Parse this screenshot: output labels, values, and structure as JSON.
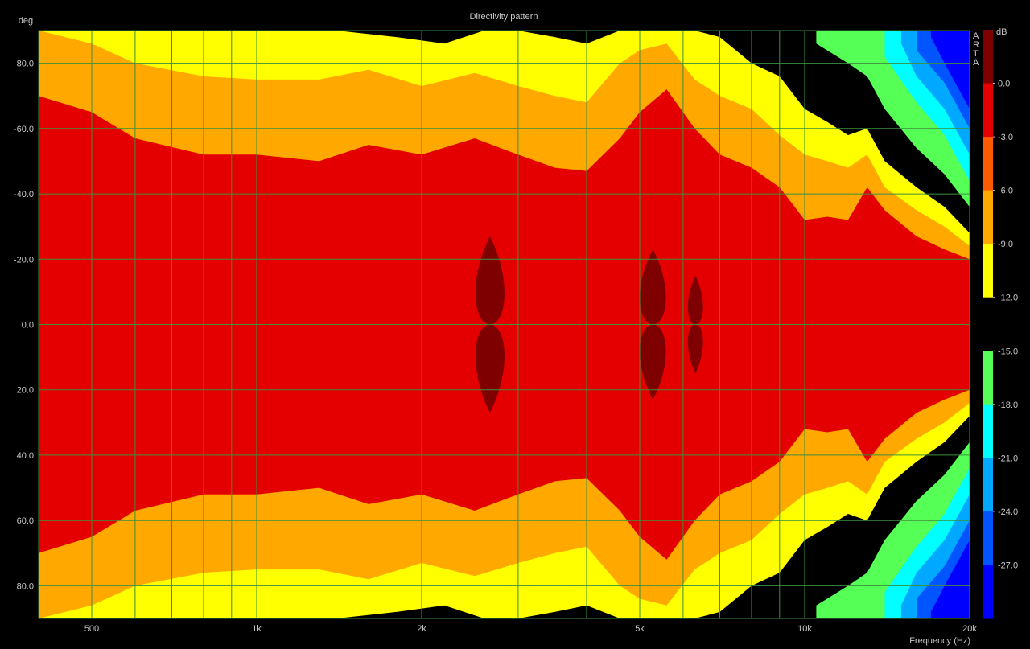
{
  "chart_data": {
    "type": "heatmap",
    "title": "Directivity pattern",
    "xlabel": "Frequency (Hz)",
    "ylabel": "deg",
    "colorbar_label": "dB",
    "brand": "ARTA",
    "x_scale": "log",
    "xlim": [
      400,
      20000
    ],
    "ylim": [
      -90,
      90
    ],
    "x_major_ticks": [
      {
        "value": 500,
        "label": "500"
      },
      {
        "value": 1000,
        "label": "1k"
      },
      {
        "value": 2000,
        "label": "2k"
      },
      {
        "value": 5000,
        "label": "5k"
      },
      {
        "value": 10000,
        "label": "10k"
      },
      {
        "value": 20000,
        "label": "20k"
      }
    ],
    "x_grid": [
      400,
      500,
      600,
      700,
      800,
      900,
      1000,
      2000,
      3000,
      4000,
      5000,
      6000,
      7000,
      8000,
      9000,
      10000,
      20000
    ],
    "y_ticks": [
      {
        "value": -80,
        "label": "-80.0"
      },
      {
        "value": -60,
        "label": "-60.0"
      },
      {
        "value": -40,
        "label": "-40.0"
      },
      {
        "value": -20,
        "label": "-20.0"
      },
      {
        "value": 0,
        "label": "0.0"
      },
      {
        "value": 20,
        "label": "20.0"
      },
      {
        "value": 40,
        "label": "40.0"
      },
      {
        "value": 60,
        "label": "60.0"
      },
      {
        "value": 80,
        "label": "80.0"
      }
    ],
    "grid": true,
    "levels_db": [
      3,
      0,
      -3,
      -6,
      -9,
      -12,
      -15,
      -18,
      -21,
      -24,
      -27
    ],
    "colorbar_ticks": [
      "0.0",
      "-3.0",
      "-6.0",
      "-9.0",
      "-12.0",
      "-15.0",
      "-18.0",
      "-21.0",
      "-24.0",
      "-27.0"
    ],
    "band_colors": [
      "#7e0000",
      "#e40000",
      "#ff5a00",
      "#ffa800",
      "#ffff00",
      "#000000",
      "#55ff55",
      "#00ffff",
      "#00a8ff",
      "#0055ff",
      "#0000ff"
    ],
    "contours": [
      {
        "level_db": -3,
        "frequency": [
          400,
          500,
          600,
          800,
          1000,
          1300,
          1600,
          2000,
          2500,
          3000,
          3500,
          4000,
          4600,
          5000,
          5600,
          6300,
          7000,
          8000,
          9000,
          10000,
          11000,
          12000,
          13000,
          14000,
          16000,
          18000,
          20000
        ],
        "angle": [
          70,
          65,
          57,
          52,
          52,
          50,
          55,
          52,
          57,
          52,
          48,
          47,
          57,
          65,
          72,
          60,
          52,
          48,
          42,
          32,
          33,
          32,
          42,
          35,
          27,
          23,
          20
        ]
      },
      {
        "level_db": -6,
        "frequency": [
          400,
          500,
          600,
          800,
          1000,
          1300,
          1600,
          2000,
          2500,
          3000,
          3500,
          4000,
          4600,
          5000,
          5600,
          6300,
          7000,
          8000,
          9000,
          10000,
          11000,
          12000,
          13000,
          14000,
          16000,
          18000,
          20000
        ],
        "angle": [
          90,
          86,
          80,
          76,
          75,
          75,
          78,
          73,
          77,
          73,
          70,
          68,
          80,
          84,
          86,
          75,
          70,
          66,
          58,
          52,
          50,
          48,
          52,
          42,
          35,
          30,
          24
        ]
      },
      {
        "level_db": -9,
        "frequency": [
          1400,
          1800,
          2200,
          2600,
          3000,
          3500,
          4000,
          4600,
          5000,
          5600,
          6300,
          7000,
          8000,
          9000,
          10000,
          11000,
          12000,
          13000,
          14000,
          16000,
          18000,
          20000
        ],
        "angle": [
          90,
          88,
          86,
          90,
          90,
          88,
          86,
          90,
          90,
          90,
          90,
          88,
          80,
          76,
          66,
          62,
          58,
          60,
          50,
          42,
          36,
          28
        ]
      },
      {
        "level_db": -12,
        "frequency": [
          10500,
          12000,
          13000,
          14000,
          16000,
          18000,
          20000
        ],
        "angle": [
          86,
          80,
          76,
          66,
          54,
          46,
          36
        ]
      },
      {
        "level_db": -15,
        "frequency": [
          14000,
          16000,
          18000,
          20000
        ],
        "angle": [
          82,
          68,
          58,
          44
        ]
      },
      {
        "level_db": -18,
        "frequency": [
          15000,
          16000,
          18000,
          20000
        ],
        "angle": [
          86,
          76,
          66,
          52
        ]
      },
      {
        "level_db": -21,
        "frequency": [
          16000,
          18000,
          20000
        ],
        "angle": [
          84,
          74,
          60
        ]
      },
      {
        "level_db": -24,
        "frequency": [
          17000,
          18000,
          20000
        ],
        "angle": [
          88,
          80,
          66
        ]
      }
    ],
    "peak_regions": [
      {
        "frequency_range": [
          2450,
          2900
        ],
        "angle_range": [
          -27,
          27
        ]
      },
      {
        "frequency_range": [
          4900,
          5700
        ],
        "angle_range": [
          -23,
          23
        ]
      },
      {
        "frequency_range": [
          6050,
          6600
        ],
        "angle_range": [
          -15,
          15
        ]
      }
    ]
  }
}
